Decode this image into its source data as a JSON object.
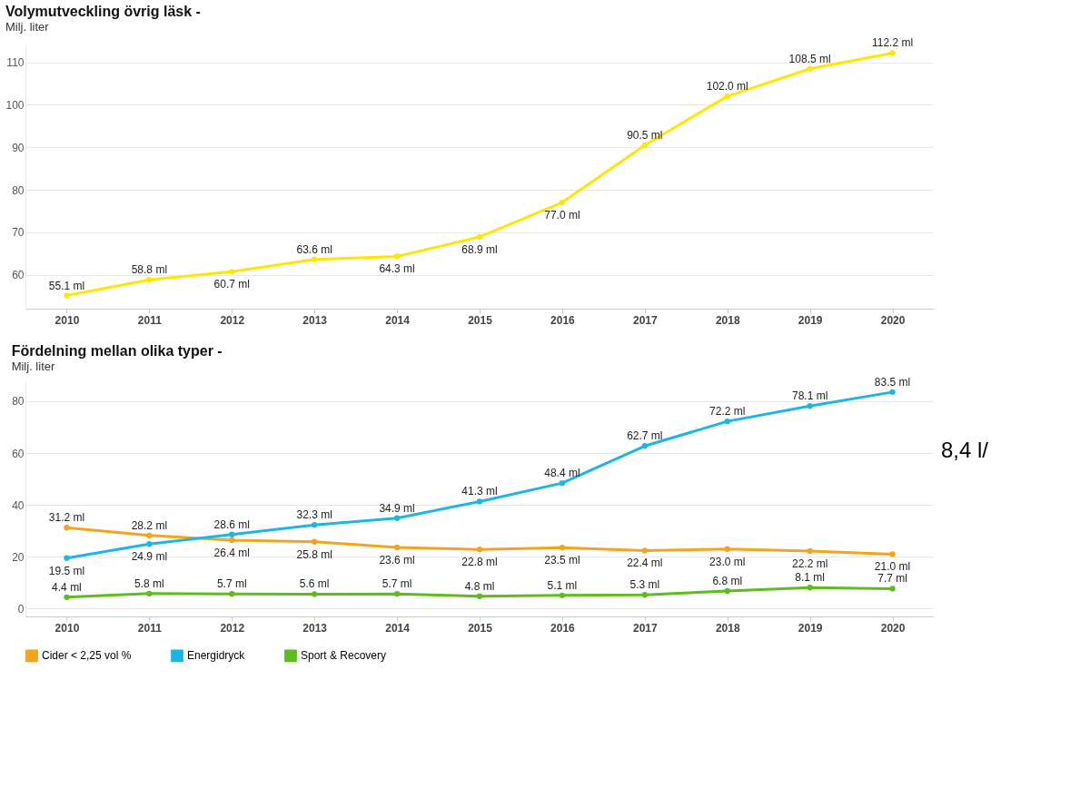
{
  "chart_data": [
    {
      "type": "line",
      "title": "Volymutveckling övrig läsk -",
      "subtitle": "Milj. liter",
      "categories": [
        "2010",
        "2011",
        "2012",
        "2013",
        "2014",
        "2015",
        "2016",
        "2017",
        "2018",
        "2019",
        "2020"
      ],
      "series": [
        {
          "color": "#ffe600",
          "values": [
            55.1,
            58.8,
            60.7,
            63.6,
            64.3,
            68.9,
            77.0,
            90.5,
            102.0,
            108.5,
            112.2
          ],
          "value_labels": [
            "55.1 ml",
            "58.8 ml",
            "60.7 ml",
            "63.6 ml",
            "64.3 ml",
            "68.9 ml",
            "77.0 ml",
            "90.5 ml",
            "102.0 ml",
            "108.5 ml",
            "112.2 ml"
          ]
        }
      ],
      "ylim": [
        52,
        114
      ],
      "yticks": [
        60,
        70,
        80,
        90,
        100,
        110
      ],
      "grid": "y",
      "marker": "circle",
      "line_style": "solid",
      "legend": false
    },
    {
      "type": "line",
      "title": "Fördelning mellan olika typer -",
      "subtitle": "Milj. liter",
      "categories": [
        "2010",
        "2011",
        "2012",
        "2013",
        "2014",
        "2015",
        "2016",
        "2017",
        "2018",
        "2019",
        "2020"
      ],
      "series": [
        {
          "name": "Cider < 2,25 vol %",
          "color": "#f7a21b",
          "values": [
            31.2,
            28.2,
            26.4,
            25.8,
            23.6,
            22.8,
            23.5,
            22.4,
            23.0,
            22.2,
            21.0
          ],
          "value_labels": [
            "31.2 ml",
            "28.2 ml",
            "26.4 ml",
            "25.8 ml",
            "23.6 ml",
            "22.8 ml",
            "23.5 ml",
            "22.4 ml",
            "23.0 ml",
            "22.2 ml",
            "21.0 ml"
          ]
        },
        {
          "name": "Energidryck",
          "color": "#1cb5e8",
          "values": [
            19.5,
            24.9,
            28.6,
            32.3,
            34.9,
            41.3,
            48.4,
            62.7,
            72.2,
            78.1,
            83.5
          ],
          "value_labels": [
            "19.5 ml",
            "24.9 ml",
            "28.6 ml",
            "32.3 ml",
            "34.9 ml",
            "41.3 ml",
            "48.4 ml",
            "62.7 ml",
            "72.2 ml",
            "78.1 ml",
            "83.5 ml"
          ]
        },
        {
          "name": "Sport & Recovery",
          "color": "#5cbd1c",
          "values": [
            4.4,
            5.8,
            5.7,
            5.6,
            5.7,
            4.8,
            5.1,
            5.3,
            6.8,
            8.1,
            7.7
          ],
          "value_labels": [
            "4.4 ml",
            "5.8 ml",
            "5.7 ml",
            "5.6 ml",
            "5.7 ml",
            "4.8 ml",
            "5.1 ml",
            "5.3 ml",
            "6.8 ml",
            "8.1 ml",
            "7.7 ml"
          ]
        }
      ],
      "ylim": [
        -3,
        88
      ],
      "yticks": [
        0,
        20,
        40,
        60,
        80
      ],
      "grid": "y",
      "marker": "circle",
      "line_style": "solid",
      "legend": "bottom left",
      "annotations": [
        "8,4 l/"
      ]
    }
  ]
}
